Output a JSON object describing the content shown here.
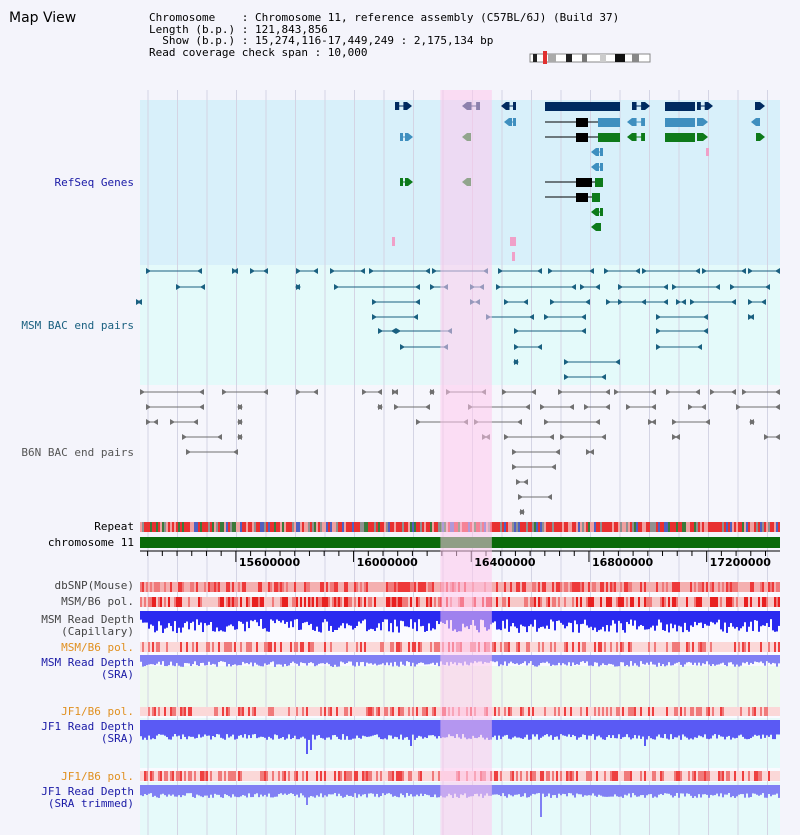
{
  "title": "Map View",
  "info": {
    "chromosome": "Chromosome    : Chromosome 11, reference assembly (C57BL/6J) (Build 37)",
    "length": "Length (b.p.) : 121,843,856",
    "show": "  Show (b.p.) : 15,274,116-17,449,249 : 2,175,134 bp",
    "coverage": "Read coverage check span : 10,000"
  },
  "tracks": {
    "refseq": {
      "label": "RefSeq Genes",
      "color": "#1a1aa6"
    },
    "msm_bac": {
      "label": "MSM BAC end pairs",
      "color": "#1a6080"
    },
    "b6n_bac": {
      "label": "B6N BAC end pairs",
      "color": "#555555"
    },
    "repeat": {
      "label": "Repeat"
    },
    "chromosome": {
      "label": "chromosome 11"
    },
    "dbsnp": {
      "label": "dbSNP(Mouse)"
    },
    "msm_b6_pol_1": {
      "label": "MSM/B6 pol."
    },
    "msm_depth_cap": {
      "label": "MSM Read Depth\n(Capillary)"
    },
    "msm_b6_pol_2": {
      "label": "MSM/B6 pol.",
      "color": "#e09020"
    },
    "msm_depth_sra": {
      "label": "MSM Read Depth\n(SRA)",
      "color": "#1a1aa6"
    },
    "jf1_b6_pol_1": {
      "label": "JF1/B6 pol.",
      "color": "#e09020"
    },
    "jf1_depth_sra": {
      "label": "JF1 Read Depth\n(SRA)",
      "color": "#1a1aa6"
    },
    "jf1_b6_pol_2": {
      "label": "JF1/B6 pol.",
      "color": "#e09020"
    },
    "jf1_depth_trim": {
      "label": "JF1 Read Depth\n(SRA trimmed)",
      "color": "#1a1aa6"
    }
  },
  "axis": {
    "ticks": [
      "15600000",
      "16000000",
      "16400000",
      "16800000",
      "17200000"
    ],
    "tick_values": [
      15600000,
      16000000,
      16400000,
      16800000,
      17200000
    ],
    "range": [
      15274116,
      17449249
    ]
  },
  "highlight": {
    "start": 16295000,
    "end": 16470000,
    "color": "#ffc8ec"
  },
  "colors": {
    "refseq_bg": "#d8f0fa",
    "msm_bg": "#e4fafa",
    "depth_bg_green": "#eefaee",
    "depth_bg_cyan": "#e6fafa",
    "gene_navy": "#002a60",
    "gene_blue": "#3f8fbf",
    "gene_green": "#0e7a1a",
    "chromosome_bar": "#0a6a0a",
    "snp_red": "#ee3a3a",
    "depth_blue": "#2a2af0",
    "depth_light": "#8080f4"
  }
}
